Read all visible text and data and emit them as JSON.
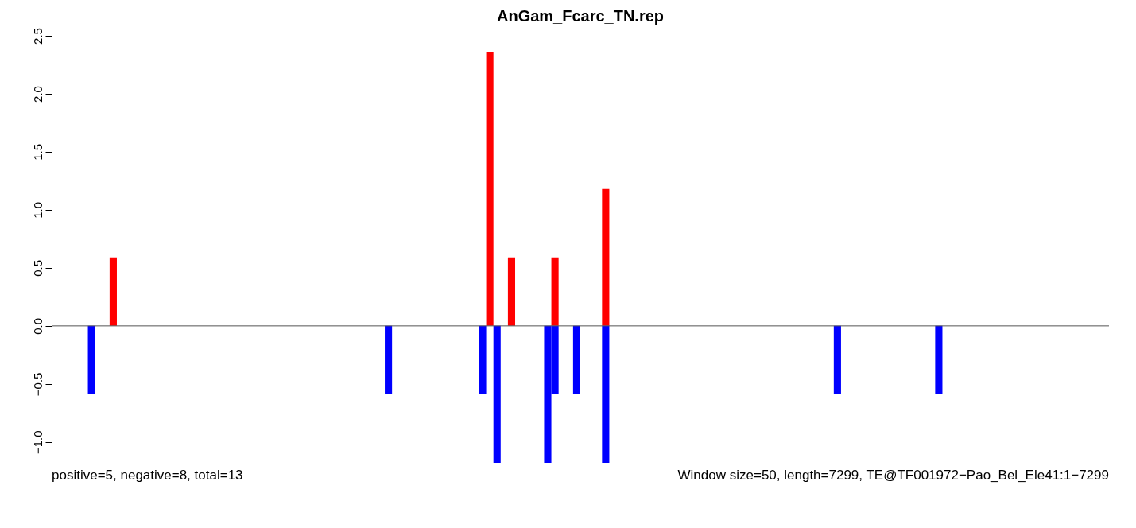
{
  "chart_data": {
    "type": "bar",
    "title": "AnGam_Fcarc_TN.rep",
    "categories": [
      null,
      null,
      null,
      null,
      null,
      null,
      null,
      null,
      null,
      null,
      null,
      null,
      null,
      null,
      null,
      null,
      null,
      null,
      null,
      null,
      null,
      null,
      null,
      null,
      null,
      null,
      null,
      null,
      null,
      null,
      null,
      null,
      null,
      null,
      null,
      null,
      null,
      null,
      null,
      null,
      null,
      null,
      null,
      null,
      null,
      null,
      null,
      null,
      null,
      null,
      null,
      null,
      null,
      null,
      null,
      null,
      null,
      null,
      null,
      null,
      null,
      null,
      null,
      null,
      null,
      null,
      null,
      null,
      null,
      null,
      null,
      null,
      null,
      null,
      null,
      null,
      null,
      null,
      null,
      null,
      null,
      null,
      null,
      null,
      null,
      null,
      null,
      null,
      null,
      null,
      null,
      null,
      null,
      null,
      null,
      null,
      null,
      null,
      null,
      null,
      null,
      null,
      null,
      null,
      null,
      null,
      null,
      null,
      null,
      null,
      null,
      null,
      null,
      null,
      null,
      null,
      null,
      null,
      null,
      null,
      null,
      null,
      null,
      null,
      null,
      null,
      null,
      null,
      null,
      null,
      null,
      null,
      null,
      null,
      null,
      null,
      null,
      null,
      null,
      null,
      null,
      null,
      null,
      null,
      null,
      null
    ],
    "series": [
      {
        "color": "#ff0000",
        "values": [
          null,
          null,
          null,
          null,
          null,
          null,
          null,
          null,
          0.59,
          null,
          null,
          null,
          null,
          null,
          null,
          null,
          null,
          null,
          null,
          null,
          null,
          null,
          null,
          null,
          null,
          null,
          null,
          null,
          null,
          null,
          null,
          null,
          null,
          null,
          null,
          null,
          null,
          null,
          null,
          null,
          null,
          null,
          null,
          null,
          null,
          null,
          null,
          null,
          null,
          null,
          null,
          null,
          null,
          null,
          null,
          null,
          null,
          null,
          null,
          null,
          2.36,
          null,
          null,
          0.59,
          null,
          null,
          null,
          null,
          null,
          0.59,
          null,
          null,
          null,
          null,
          null,
          null,
          1.18,
          null,
          null,
          null,
          null,
          null,
          null,
          null,
          null,
          null,
          null,
          null,
          null,
          null,
          null,
          null,
          null,
          null,
          null,
          null,
          null,
          null,
          null,
          null,
          null,
          null,
          null,
          null,
          null,
          null,
          null,
          null,
          null,
          null,
          null,
          null,
          null,
          null,
          null,
          null,
          null,
          null,
          null,
          null,
          null,
          null,
          null,
          null,
          null,
          null,
          null,
          null,
          null,
          null,
          null,
          null,
          null,
          null,
          null,
          null,
          null,
          null,
          null,
          null,
          null,
          null,
          null,
          null,
          null,
          null
        ]
      },
      {
        "color": "#0000ff",
        "values": [
          null,
          null,
          null,
          null,
          null,
          -0.59,
          null,
          null,
          null,
          null,
          null,
          null,
          null,
          null,
          null,
          null,
          null,
          null,
          null,
          null,
          null,
          null,
          null,
          null,
          null,
          null,
          null,
          null,
          null,
          null,
          null,
          null,
          null,
          null,
          null,
          null,
          null,
          null,
          null,
          null,
          null,
          null,
          null,
          null,
          null,
          null,
          -0.59,
          null,
          null,
          null,
          null,
          null,
          null,
          null,
          null,
          null,
          null,
          null,
          null,
          -0.59,
          null,
          -1.18,
          null,
          null,
          null,
          null,
          null,
          null,
          -1.18,
          -0.59,
          null,
          null,
          -0.59,
          null,
          null,
          null,
          -1.18,
          null,
          null,
          null,
          null,
          null,
          null,
          null,
          null,
          null,
          null,
          null,
          null,
          null,
          null,
          null,
          null,
          null,
          null,
          null,
          null,
          null,
          null,
          null,
          null,
          null,
          null,
          null,
          null,
          null,
          null,
          null,
          -0.59,
          null,
          null,
          null,
          null,
          null,
          null,
          null,
          null,
          null,
          null,
          null,
          null,
          null,
          -0.59,
          null,
          null,
          null,
          null,
          null,
          null,
          null,
          null,
          null,
          null,
          null,
          null,
          null,
          null,
          null,
          null,
          null,
          null,
          null,
          null,
          null,
          null,
          null
        ]
      }
    ],
    "ylim": [
      -1.2,
      2.5
    ],
    "yticks": [
      {
        "value": -1,
        "label": "−1.0"
      },
      {
        "value": -0.5,
        "label": "−0.5"
      },
      {
        "value": 0,
        "label": "0.0"
      },
      {
        "value": 0.5,
        "label": "0.5"
      },
      {
        "value": 1,
        "label": "1.0"
      },
      {
        "value": 1.5,
        "label": "1.5"
      },
      {
        "value": 2,
        "label": "2.0"
      },
      {
        "value": 2.5,
        "label": "2.5"
      }
    ],
    "tick_labels": "y",
    "grid": false,
    "ref_lines": [
      {
        "axis": "y",
        "value": 0,
        "color": "#555555"
      }
    ],
    "annotations": [
      "positive=5, negative=8, total=13",
      "Window size=50, length=7299, TE@TF001972−Pao_Bel_Ele41:1−7299"
    ]
  }
}
